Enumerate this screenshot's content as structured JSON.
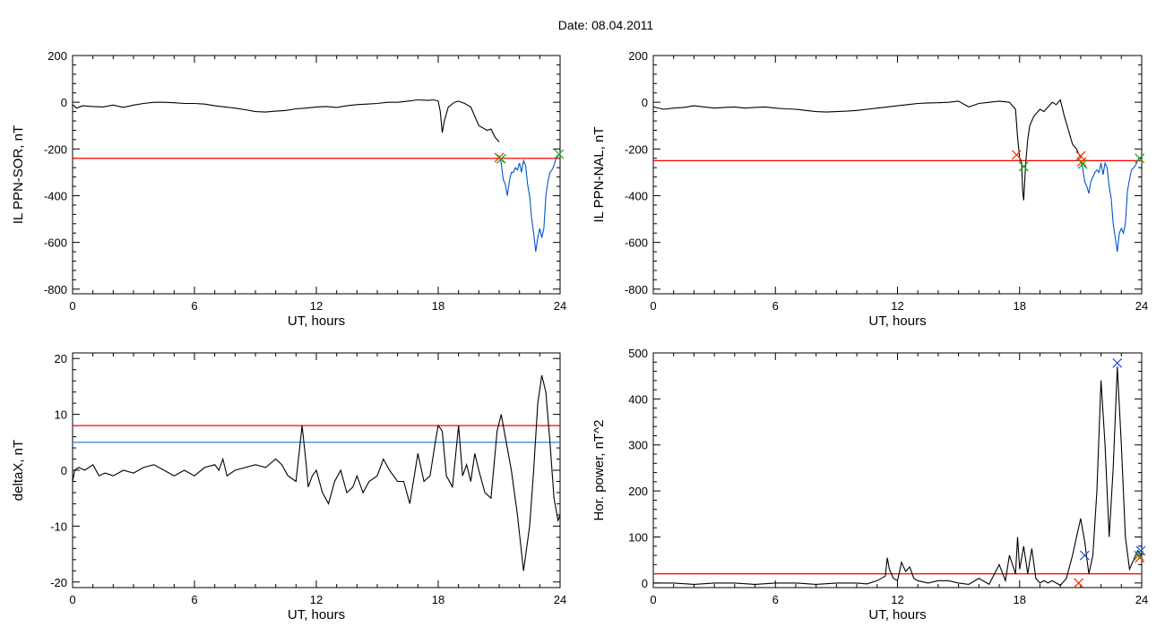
{
  "title": "Date:  08.04.2011",
  "colors": {
    "axis": "#000000",
    "threshold": "#ff0000",
    "highlight": "#0055cc",
    "level2": "#1f6fd0",
    "marker_start": "#ff3300",
    "marker_end": "#22aa22",
    "peak": "#2255dd"
  },
  "chart_data": [
    {
      "type": "line",
      "ylabel": "IL PPN-SOR, nT",
      "xlabel": "UT, hours",
      "xlim": [
        0,
        24
      ],
      "ylim": [
        -820,
        200
      ],
      "xticks": [
        0,
        6,
        12,
        18,
        24
      ],
      "yticks": [
        -800,
        -600,
        -400,
        -200,
        0,
        200
      ],
      "series": [
        {
          "role": "main",
          "x": [
            0,
            0.2,
            0.5,
            1,
            1.5,
            2,
            2.5,
            3,
            3.5,
            4,
            4.5,
            5,
            5.5,
            6,
            6.5,
            7,
            7.5,
            8,
            8.5,
            9,
            9.5,
            10,
            10.5,
            11,
            11.5,
            12,
            12.5,
            13,
            13.5,
            14,
            14.5,
            15,
            15.5,
            16,
            16.5,
            17,
            17.5,
            17.8,
            18,
            18.1,
            18.2,
            18.3,
            18.5,
            18.8,
            19,
            19.3,
            19.6,
            19.8,
            20,
            20.2,
            20.4,
            20.6,
            20.8,
            21
          ],
          "y": [
            -10,
            -25,
            -15,
            -18,
            -20,
            -12,
            -22,
            -12,
            -5,
            0,
            0,
            -2,
            -5,
            -5,
            -8,
            -15,
            -20,
            -25,
            -32,
            -40,
            -42,
            -38,
            -35,
            -28,
            -25,
            -20,
            -18,
            -22,
            -15,
            -10,
            -8,
            -5,
            0,
            0,
            5,
            10,
            8,
            10,
            5,
            -40,
            -130,
            -80,
            -20,
            0,
            5,
            -5,
            -20,
            -60,
            -100,
            -110,
            -120,
            -115,
            -150,
            -170
          ]
        },
        {
          "role": "highlight",
          "x": [
            21,
            21.1,
            21.2,
            21.3,
            21.4,
            21.5,
            21.6,
            21.7,
            21.8,
            21.9,
            22,
            22.1,
            22.2,
            22.3,
            22.4,
            22.5,
            22.6,
            22.7,
            22.8,
            22.9,
            23,
            23.1,
            23.2,
            23.3,
            23.4,
            23.5,
            23.6,
            23.7,
            23.8,
            23.9,
            24
          ],
          "y": [
            -230,
            -260,
            -330,
            -350,
            -400,
            -340,
            -300,
            -300,
            -280,
            -290,
            -260,
            -300,
            -250,
            -270,
            -350,
            -400,
            -500,
            -560,
            -640,
            -580,
            -540,
            -580,
            -540,
            -400,
            -340,
            -300,
            -290,
            -270,
            -240,
            -230,
            -220
          ]
        }
      ],
      "threshold": -240,
      "markers_start": [
        [
          21.0,
          -237
        ]
      ],
      "markers_end": [
        [
          21.1,
          -242
        ],
        [
          23.95,
          -222
        ]
      ]
    },
    {
      "type": "line",
      "ylabel": "IL PPN-NAL, nT",
      "xlabel": "UT, hours",
      "xlim": [
        0,
        24
      ],
      "ylim": [
        -820,
        200
      ],
      "xticks": [
        0,
        6,
        12,
        18,
        24
      ],
      "yticks": [
        -800,
        -600,
        -400,
        -200,
        0,
        200
      ],
      "series": [
        {
          "role": "main",
          "x": [
            0,
            0.5,
            1,
            1.5,
            2,
            2.5,
            3,
            3.5,
            4,
            4.5,
            5,
            5.5,
            6,
            6.5,
            7,
            7.5,
            8,
            8.5,
            9,
            9.5,
            10,
            10.5,
            11,
            11.5,
            12,
            12.5,
            13,
            13.5,
            14,
            14.5,
            15,
            15.5,
            16,
            16.5,
            17,
            17.5,
            17.8,
            17.9,
            18,
            18.1,
            18.15,
            18.2,
            18.3,
            18.4,
            18.5,
            18.7,
            19,
            19.2,
            19.4,
            19.6,
            19.8,
            20,
            20.2,
            20.4,
            20.6,
            20.8,
            21
          ],
          "y": [
            -20,
            -30,
            -25,
            -22,
            -15,
            -20,
            -25,
            -22,
            -20,
            -25,
            -22,
            -20,
            -25,
            -28,
            -30,
            -35,
            -40,
            -42,
            -40,
            -38,
            -35,
            -30,
            -25,
            -20,
            -15,
            -10,
            -5,
            -3,
            -2,
            0,
            5,
            -20,
            -5,
            0,
            5,
            0,
            -30,
            -150,
            -240,
            -260,
            -380,
            -420,
            -260,
            -160,
            -100,
            -60,
            -30,
            -40,
            -20,
            0,
            -10,
            10,
            -60,
            -120,
            -180,
            -200,
            -240
          ]
        },
        {
          "role": "highlight",
          "x": [
            21,
            21.1,
            21.2,
            21.3,
            21.4,
            21.5,
            21.6,
            21.7,
            21.8,
            21.9,
            22,
            22.1,
            22.2,
            22.3,
            22.4,
            22.5,
            22.6,
            22.7,
            22.8,
            22.9,
            23,
            23.1,
            23.2,
            23.3,
            23.4,
            23.5,
            23.6,
            23.7,
            23.8,
            23.9,
            24
          ],
          "y": [
            -250,
            -280,
            -340,
            -360,
            -390,
            -340,
            -320,
            -300,
            -290,
            -300,
            -260,
            -310,
            -260,
            -280,
            -360,
            -410,
            -520,
            -580,
            -640,
            -560,
            -540,
            -560,
            -520,
            -380,
            -330,
            -290,
            -280,
            -270,
            -250,
            -240,
            -230
          ]
        }
      ],
      "threshold": -250,
      "markers_start": [
        [
          17.85,
          -225
        ],
        [
          21.0,
          -230
        ],
        [
          21.05,
          -255
        ]
      ],
      "markers_end": [
        [
          18.2,
          -275
        ],
        [
          21.1,
          -265
        ],
        [
          23.9,
          -240
        ]
      ]
    },
    {
      "type": "line",
      "ylabel": "deltaX, nT",
      "xlabel": "UT, hours",
      "xlim": [
        0,
        24
      ],
      "ylim": [
        -21,
        21
      ],
      "xticks": [
        0,
        6,
        12,
        18,
        24
      ],
      "yticks": [
        -20,
        -10,
        0,
        10,
        20
      ],
      "series": [
        {
          "role": "main",
          "x": [
            0,
            0.1,
            0.3,
            0.6,
            1,
            1.3,
            1.6,
            2,
            2.5,
            3,
            3.5,
            4,
            4.5,
            5,
            5.5,
            6,
            6.5,
            7,
            7.2,
            7.4,
            7.6,
            8,
            8.5,
            9,
            9.5,
            10,
            10.3,
            10.6,
            11,
            11.3,
            11.5,
            11.6,
            11.8,
            12,
            12.3,
            12.6,
            12.9,
            13.2,
            13.5,
            13.8,
            14,
            14.3,
            14.6,
            15,
            15.3,
            15.6,
            16,
            16.3,
            16.6,
            17,
            17.3,
            17.6,
            17.9,
            18,
            18.2,
            18.4,
            18.7,
            19,
            19.2,
            19.4,
            19.6,
            19.8,
            20,
            20.3,
            20.6,
            20.9,
            21.1,
            21.3,
            21.6,
            21.9,
            22.2,
            22.5,
            22.7,
            22.9,
            23.1,
            23.3,
            23.5,
            23.7,
            23.9,
            24
          ],
          "y": [
            -2,
            0,
            0.5,
            0,
            1,
            -1,
            -0.5,
            -1,
            0,
            -0.5,
            0.5,
            1,
            0,
            -1,
            0,
            -1,
            0.5,
            1,
            0,
            2,
            -1,
            0,
            0.5,
            1,
            0.5,
            2,
            1,
            -1,
            -2,
            8,
            1,
            -3,
            -1,
            0,
            -4,
            -6,
            -2,
            0,
            -4,
            -3,
            -1,
            -4,
            -2,
            -1,
            2,
            0,
            -2,
            -2,
            -6,
            3,
            -2,
            -1,
            6,
            8,
            7,
            -1,
            -3,
            8,
            -1,
            1,
            -2,
            3,
            0,
            -4,
            -5,
            7,
            10,
            6,
            0,
            -8,
            -18,
            -10,
            0,
            12,
            17,
            14,
            5,
            -5,
            -9,
            -8
          ]
        }
      ],
      "thresholds": [
        8,
        5
      ]
    },
    {
      "type": "line",
      "ylabel": "Hor. power, nT^2",
      "xlabel": "UT, hours",
      "xlim": [
        0,
        24
      ],
      "ylim": [
        -10,
        500
      ],
      "xticks": [
        0,
        6,
        12,
        18,
        24
      ],
      "yticks": [
        0,
        100,
        200,
        300,
        400,
        500
      ],
      "series": [
        {
          "role": "main",
          "x": [
            0,
            1,
            2,
            3,
            4,
            5,
            6,
            7,
            8,
            9,
            10,
            10.5,
            11,
            11.4,
            11.5,
            11.6,
            11.8,
            12,
            12.2,
            12.4,
            12.6,
            12.8,
            13,
            13.5,
            14,
            14.5,
            15,
            15.5,
            16,
            16.5,
            17,
            17.3,
            17.5,
            17.8,
            17.9,
            18,
            18.2,
            18.4,
            18.6,
            18.8,
            19,
            19.2,
            19.4,
            19.6,
            19.8,
            20,
            20.3,
            20.6,
            20.8,
            21,
            21.2,
            21.4,
            21.6,
            21.8,
            22,
            22.2,
            22.4,
            22.6,
            22.8,
            23,
            23.2,
            23.4,
            23.6,
            23.8,
            24
          ],
          "y": [
            0,
            0,
            -3,
            0,
            0,
            -3,
            0,
            0,
            -3,
            0,
            0,
            -2,
            5,
            15,
            55,
            30,
            10,
            5,
            45,
            25,
            35,
            10,
            5,
            0,
            5,
            5,
            0,
            -3,
            10,
            -3,
            40,
            5,
            60,
            20,
            100,
            30,
            80,
            20,
            75,
            10,
            0,
            5,
            0,
            5,
            0,
            -5,
            10,
            60,
            100,
            140,
            90,
            20,
            60,
            200,
            440,
            300,
            100,
            250,
            470,
            300,
            100,
            30,
            50,
            70,
            60
          ]
        }
      ],
      "threshold": 20,
      "markers_start": [
        [
          20.9,
          0
        ],
        [
          23.9,
          55
        ]
      ],
      "markers_end": [
        [
          23.85,
          60
        ]
      ],
      "markers_peak": [
        [
          21.2,
          60
        ],
        [
          22.8,
          478
        ],
        [
          23.95,
          70
        ]
      ]
    }
  ]
}
